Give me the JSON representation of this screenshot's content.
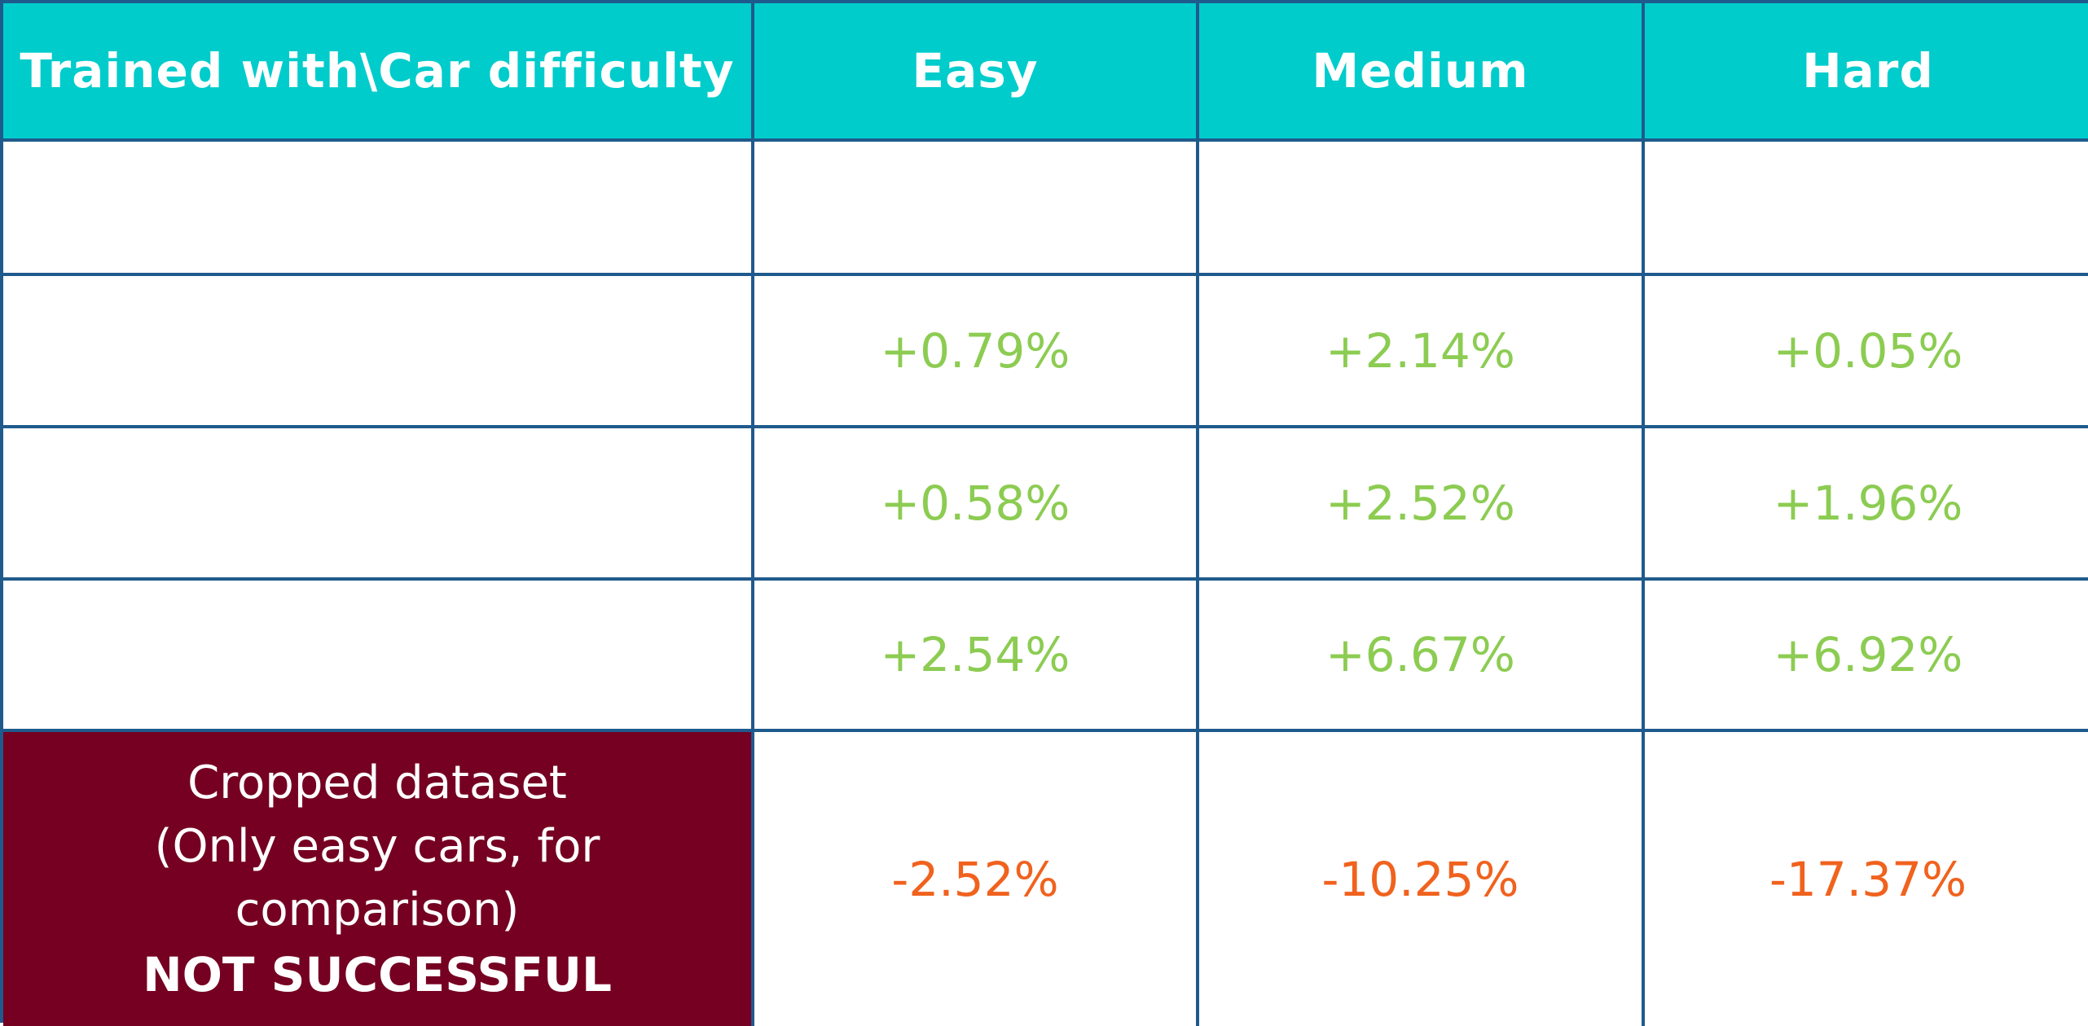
{
  "chart_data": {
    "type": "table",
    "columns": [
      "Trained with\\Car difficulty",
      "Easy",
      "Medium",
      "Hard"
    ],
    "rows": [
      {
        "label": "",
        "values": [
          "",
          "",
          ""
        ]
      },
      {
        "label": "",
        "values": [
          "+0.79%",
          "+2.14%",
          "+0.05%"
        ]
      },
      {
        "label": "",
        "values": [
          "+0.58%",
          "+2.52%",
          "+1.96%"
        ]
      },
      {
        "label": "",
        "values": [
          "+2.54%",
          "+6.67%",
          "+6.92%"
        ]
      },
      {
        "label_lines": [
          "Cropped dataset",
          "(Only easy cars, for",
          "comparison)"
        ],
        "label_note": "NOT SUCCESSFUL",
        "values": [
          "-2.52%",
          "-10.25%",
          "-17.37%"
        ]
      }
    ]
  },
  "colors": {
    "header_bg": "#00cccc",
    "border": "#1f5a8c",
    "positive": "#8ccc52",
    "negative": "#f0621e",
    "highlight_row_label_bg": "#750021"
  }
}
